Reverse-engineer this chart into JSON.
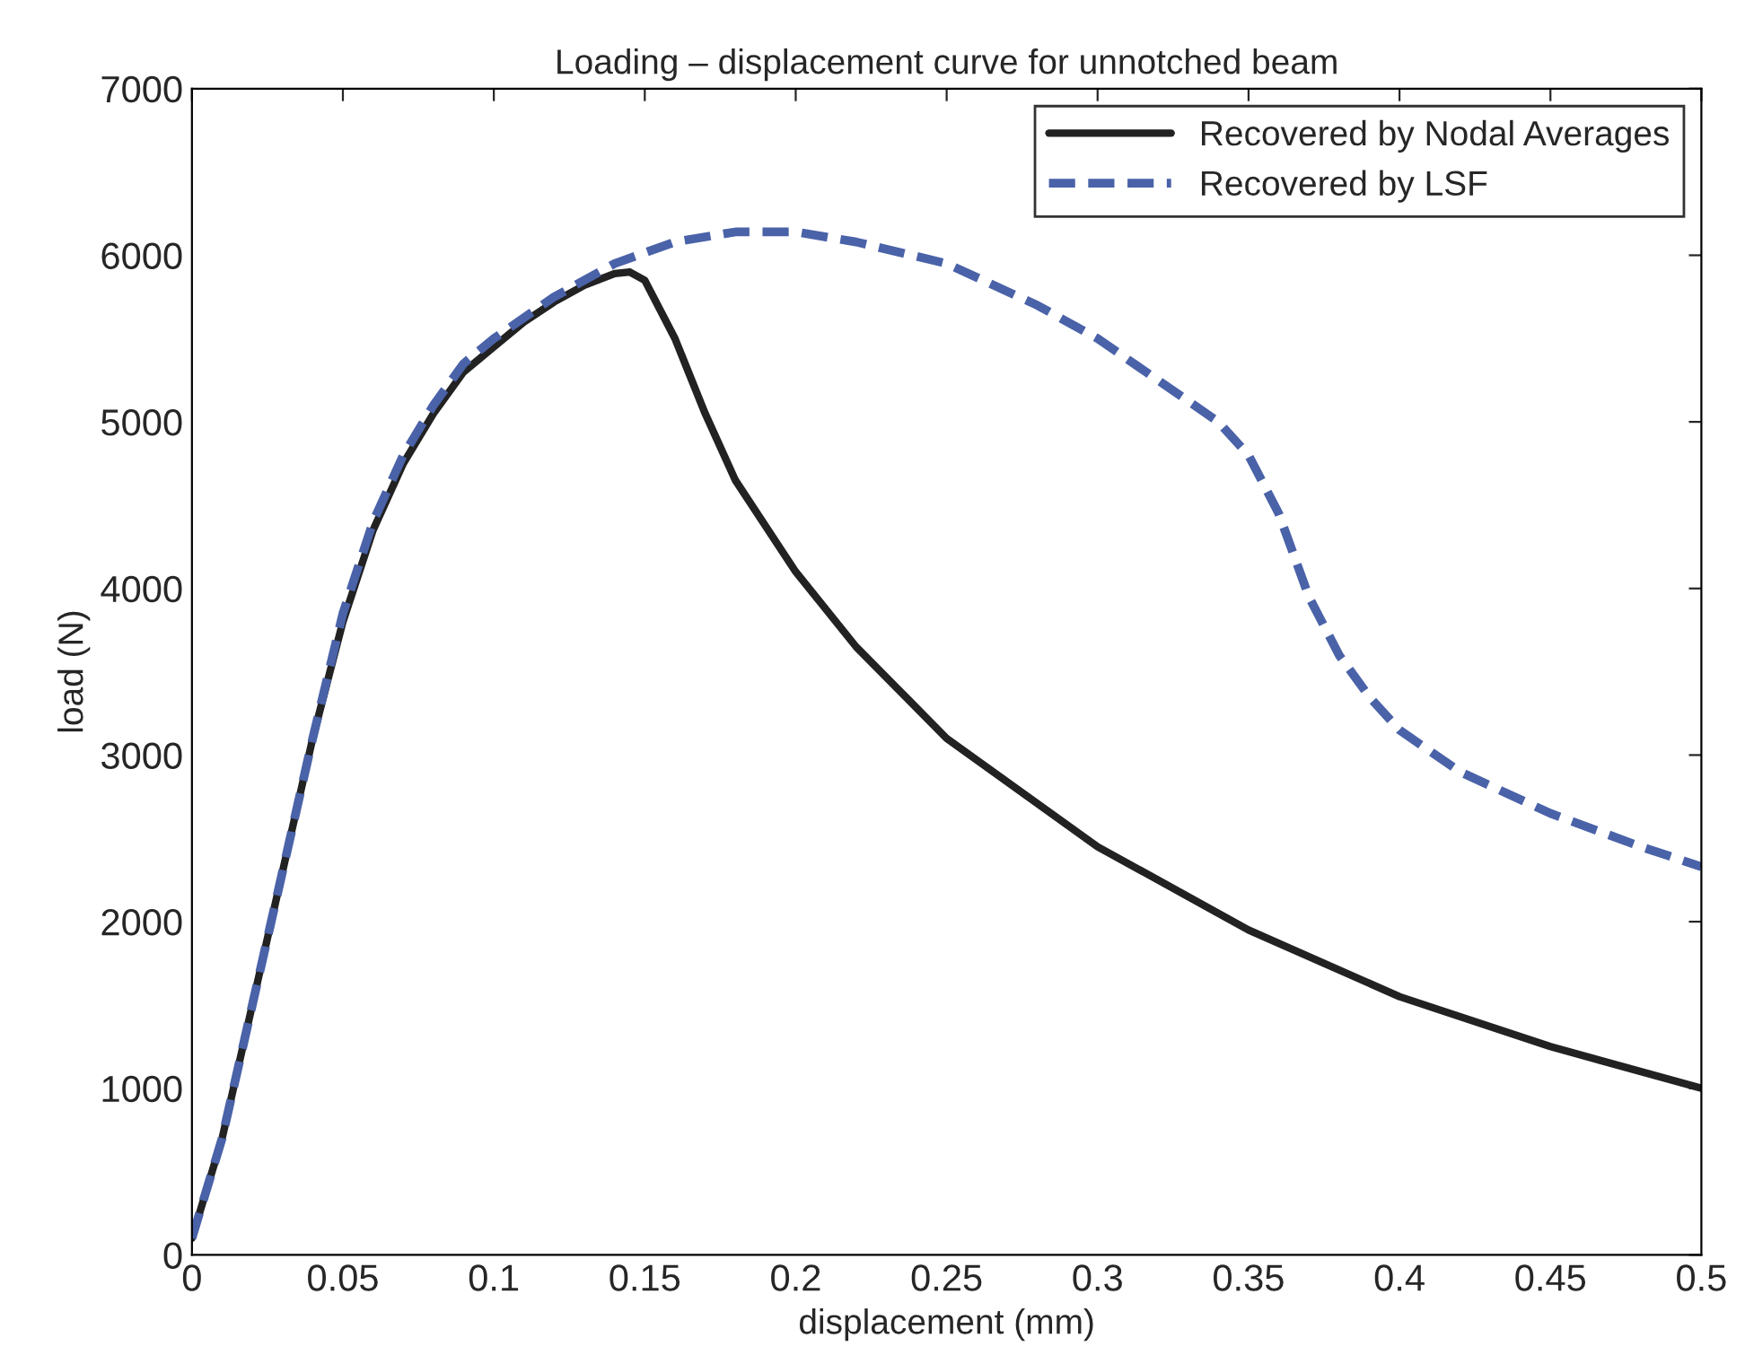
{
  "chart_data": {
    "type": "line",
    "title": "Loading – displacement curve for unnotched beam",
    "xlabel": "displacement (mm)",
    "ylabel": "load (N)",
    "xlim": [
      0,
      0.5
    ],
    "ylim": [
      0,
      7000
    ],
    "xticks": [
      0,
      0.05,
      0.1,
      0.15,
      0.2,
      0.25,
      0.3,
      0.35,
      0.4,
      0.45,
      0.5
    ],
    "yticks": [
      0,
      1000,
      2000,
      3000,
      4000,
      5000,
      6000,
      7000
    ],
    "grid": false,
    "legend": "top right",
    "marker": "none",
    "series": [
      {
        "name": "Recovered by Nodal Averages",
        "color": "#222222",
        "line_style": "solid",
        "x": [
          0,
          0.01,
          0.02,
          0.03,
          0.04,
          0.05,
          0.06,
          0.07,
          0.08,
          0.09,
          0.1,
          0.11,
          0.12,
          0.13,
          0.14,
          0.145,
          0.15,
          0.16,
          0.17,
          0.18,
          0.2,
          0.22,
          0.25,
          0.3,
          0.35,
          0.4,
          0.45,
          0.5
        ],
        "values": [
          100,
          700,
          1500,
          2300,
          3100,
          3800,
          4350,
          4750,
          5050,
          5300,
          5450,
          5600,
          5720,
          5820,
          5890,
          5900,
          5850,
          5500,
          5050,
          4650,
          4100,
          3650,
          3100,
          2450,
          1950,
          1550,
          1250,
          1000
        ]
      },
      {
        "name": "Recovered by LSF",
        "color": "#4a62a8",
        "line_style": "dashed",
        "x": [
          0,
          0.01,
          0.02,
          0.03,
          0.04,
          0.05,
          0.06,
          0.07,
          0.08,
          0.09,
          0.1,
          0.12,
          0.14,
          0.16,
          0.18,
          0.2,
          0.22,
          0.25,
          0.28,
          0.3,
          0.32,
          0.34,
          0.35,
          0.36,
          0.37,
          0.38,
          0.39,
          0.4,
          0.42,
          0.45,
          0.48,
          0.5
        ],
        "values": [
          100,
          700,
          1500,
          2300,
          3100,
          3850,
          4400,
          4800,
          5100,
          5350,
          5500,
          5750,
          5950,
          6080,
          6140,
          6140,
          6080,
          5950,
          5700,
          5500,
          5250,
          5000,
          4800,
          4450,
          3950,
          3600,
          3350,
          3150,
          2900,
          2650,
          2450,
          2330
        ]
      }
    ]
  }
}
